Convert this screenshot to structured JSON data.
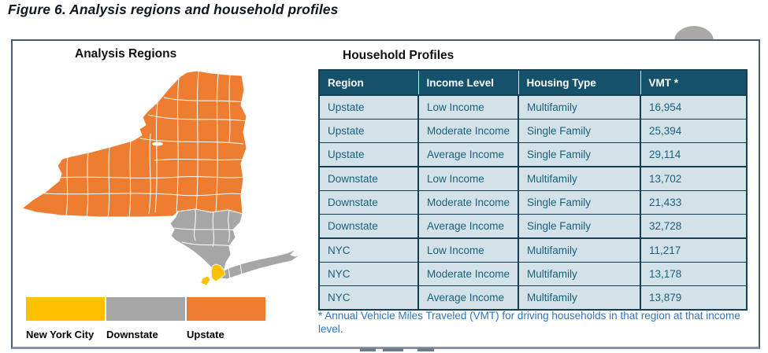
{
  "figure_title": "Figure 6. Analysis regions and household profiles",
  "left_panel": {
    "heading": "Analysis Regions",
    "map_regions": [
      "New York City",
      "Downstate",
      "Upstate"
    ],
    "legend": [
      {
        "label": "New York City",
        "color": "#FFC000"
      },
      {
        "label": "Downstate",
        "color": "#A6A6A6"
      },
      {
        "label": "Upstate",
        "color": "#ED7D31"
      }
    ]
  },
  "right_panel": {
    "heading": "Household Profiles",
    "table": {
      "columns": [
        "Region",
        "Income Level",
        "Housing Type",
        "VMT *"
      ],
      "rows": [
        [
          "Upstate",
          "Low Income",
          "Multifamily",
          "16,954"
        ],
        [
          "Upstate",
          "Moderate Income",
          "Single Family",
          "25,394"
        ],
        [
          "Upstate",
          "Average Income",
          "Single Family",
          "29,114"
        ],
        [
          "Downstate",
          "Low Income",
          "Multifamily",
          "13,702"
        ],
        [
          "Downstate",
          "Moderate Income",
          "Single Family",
          "21,433"
        ],
        [
          "Downstate",
          "Average Income",
          "Single Family",
          "32,728"
        ],
        [
          "NYC",
          "Low Income",
          "Multifamily",
          "11,217"
        ],
        [
          "NYC",
          "Moderate Income",
          "Multifamily",
          "13,178"
        ],
        [
          "NYC",
          "Average Income",
          "Multifamily",
          "13,879"
        ]
      ]
    },
    "footnote": "* Annual Vehicle Miles Traveled (VMT) for driving households in that region at that income level."
  },
  "colors": {
    "nyc_yellow": "#FFC000",
    "downstate_gray": "#A6A6A6",
    "upstate_orange": "#ED7D31",
    "table_header_bg": "#15516B",
    "table_row_bg": "#D3E1E9",
    "table_text": "#1A617E",
    "table_border": "#163E52",
    "footnote_blue": "#2E75B6"
  }
}
